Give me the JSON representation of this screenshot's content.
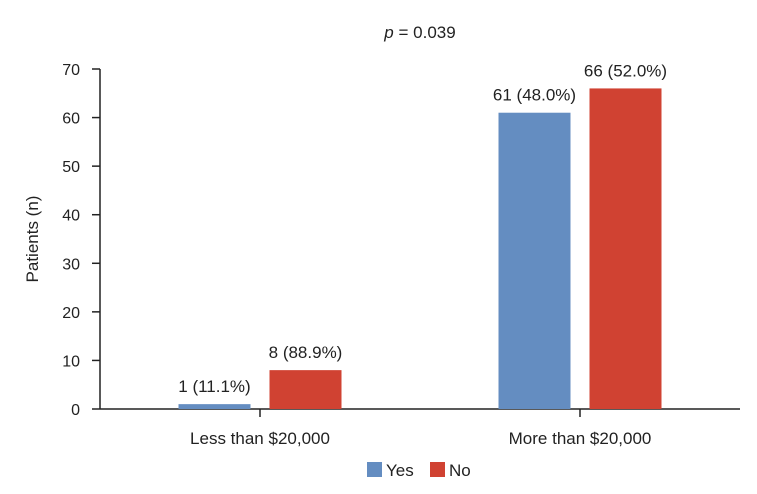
{
  "chart_data": {
    "type": "bar",
    "subtitle_prefix": "p",
    "subtitle_value": " = 0.039",
    "ylabel": "Patients (n)",
    "ylim": [
      0,
      70
    ],
    "yticks": [
      0,
      10,
      20,
      30,
      40,
      50,
      60,
      70
    ],
    "categories": [
      "Less than $20,000",
      "More than $20,000"
    ],
    "series": [
      {
        "name": "Yes",
        "color": "#648dc1",
        "values": [
          1,
          61
        ],
        "labels": [
          "1 (11.1%)",
          "61 (48.0%)"
        ]
      },
      {
        "name": "No",
        "color": "#d04232",
        "values": [
          8,
          66
        ],
        "labels": [
          "8 (88.9%)",
          "66 (52.0%)"
        ]
      }
    ],
    "legend_position": "bottom-center",
    "grid": false
  }
}
